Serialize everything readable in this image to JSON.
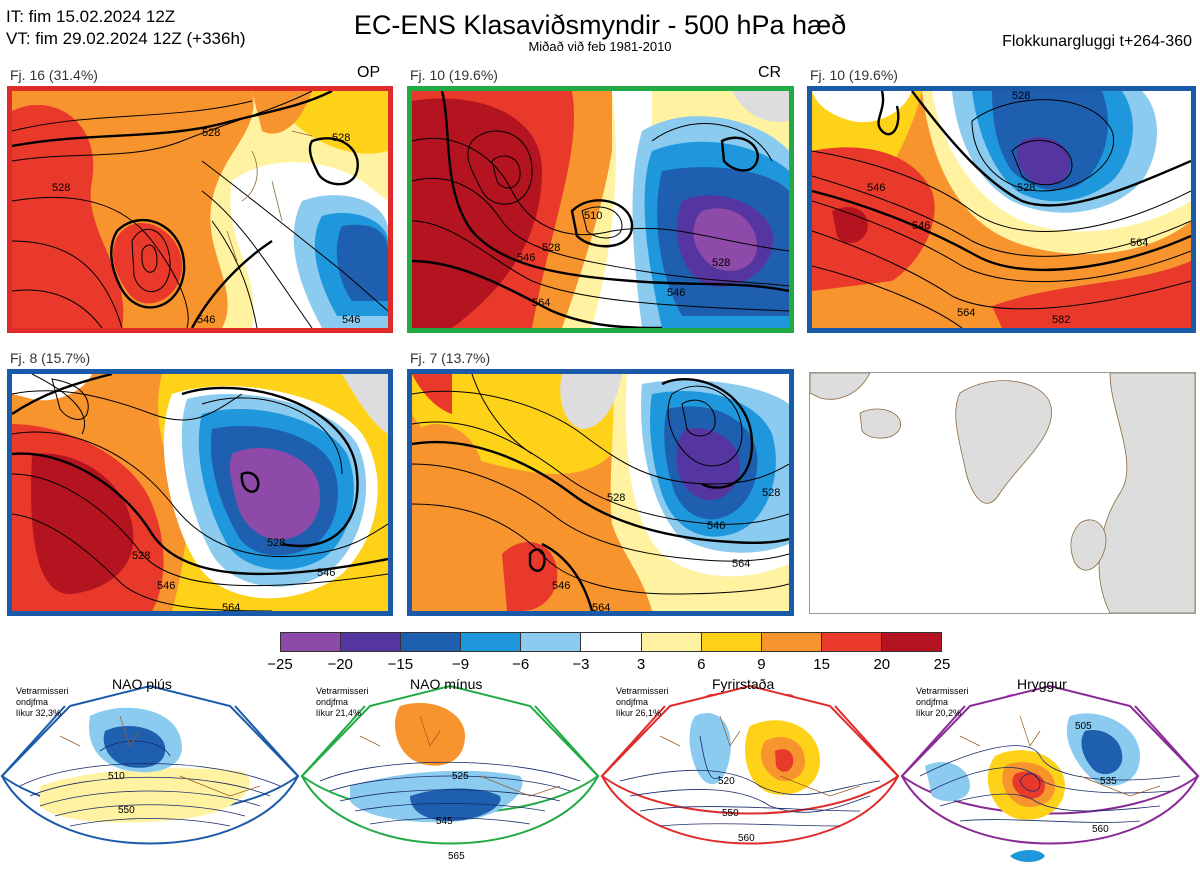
{
  "header": {
    "it_line": "IT: fim 15.02.2024 12Z",
    "vt_line": "VT: fim 29.02.2024 12Z  (+336h)",
    "title": "EC-ENS Klasaviðsmyndir - 500 hPa hæð",
    "subtitle": "Miðað við feb 1981-2010",
    "window": "Flokkunargluggi t+264-360"
  },
  "panels": [
    {
      "label": "Fj. 16 (31.4%)",
      "tag": "OP",
      "border": "#e02b2b",
      "contours": [
        "528",
        "528",
        "528",
        "546",
        "546"
      ]
    },
    {
      "label": "Fj. 10 (19.6%)",
      "tag": "CR",
      "border": "#22aa44",
      "contours": [
        "510",
        "528",
        "528",
        "546",
        "546",
        "564"
      ]
    },
    {
      "label": "Fj. 10 (19.6%)",
      "tag": "",
      "border": "#1a5aa8",
      "contours": [
        "528",
        "528",
        "546",
        "546",
        "564",
        "564",
        "582"
      ]
    },
    {
      "label": "Fj. 8 (15.7%)",
      "tag": "",
      "border": "#1a5aa8",
      "contours": [
        "528",
        "528",
        "546",
        "546",
        "564"
      ]
    },
    {
      "label": "Fj. 7 (13.7%)",
      "tag": "",
      "border": "#1a5aa8",
      "contours": [
        "528",
        "528",
        "546",
        "546",
        "564",
        "564"
      ]
    }
  ],
  "colorbar": {
    "colors": [
      "#8e4aa8",
      "#5535a0",
      "#1f5fb0",
      "#1f97dc",
      "#8acbef",
      "#ffffff",
      "#fff2a0",
      "#ffd21a",
      "#f7942e",
      "#e8392b",
      "#b3141f"
    ],
    "ticks": [
      "−25",
      "−20",
      "−15",
      "−9",
      "−6",
      "−3",
      "3",
      "6",
      "9",
      "15",
      "20",
      "25"
    ]
  },
  "regimes": [
    {
      "title": "NAO plús",
      "info": [
        "Vetrarmisseri",
        "ondjfma",
        "líkur 32,3%"
      ],
      "color": "#1a5aa8",
      "dot": "#1656a6",
      "labels": [
        "510",
        "550"
      ]
    },
    {
      "title": "NAO mínus",
      "info": [
        "Vetrarmisseri",
        "ondjfma",
        "líkur 21,4%"
      ],
      "color": "#22aa44",
      "dot": "#22aa44",
      "labels": [
        "525",
        "545",
        "565"
      ]
    },
    {
      "title": "Fyrirstaða",
      "info": [
        "Vetrarmisseri",
        "ondjfma",
        "líkur 26,1%"
      ],
      "color": "#e02b2b",
      "dot": "#e02b2b",
      "labels": [
        "520",
        "550",
        "560"
      ]
    },
    {
      "title": "Hryggur",
      "info": [
        "Vetrarmisseri",
        "ondjfma",
        "líkur 20,2%"
      ],
      "color": "#8a2a96",
      "dot": "#ee77ee",
      "labels": [
        "505",
        "535",
        "560"
      ]
    }
  ]
}
